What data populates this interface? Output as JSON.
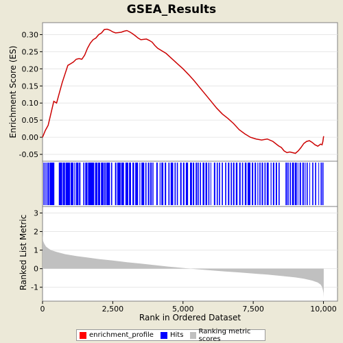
{
  "chart_data": {
    "title": "GSEA_Results",
    "legend": [
      {
        "name": "enrichment_profile",
        "color": "#ff0000"
      },
      {
        "name": "Hits",
        "color": "#0000ff"
      },
      {
        "name": "Ranking metric scores",
        "color": "#c0c0c0"
      }
    ],
    "es_panel": {
      "type": "line",
      "ylabel": "Enrichment Score (ES)",
      "ylim": [
        -0.07,
        0.335
      ],
      "yticks": [
        0.3,
        0.25,
        0.2,
        0.15,
        0.1,
        0.05,
        0.0,
        -0.05
      ],
      "ytick_labels": [
        "0.30",
        "0.25",
        "0.20",
        "0.15",
        "0.10",
        "0.05",
        "0.00",
        "-0.05"
      ],
      "xlim": [
        0,
        10500
      ],
      "color": "#cc0000",
      "points": [
        [
          0,
          0.0
        ],
        [
          100,
          0.02
        ],
        [
          200,
          0.035
        ],
        [
          300,
          0.07
        ],
        [
          400,
          0.105
        ],
        [
          500,
          0.1
        ],
        [
          600,
          0.13
        ],
        [
          700,
          0.16
        ],
        [
          800,
          0.185
        ],
        [
          900,
          0.21
        ],
        [
          1000,
          0.215
        ],
        [
          1100,
          0.22
        ],
        [
          1200,
          0.228
        ],
        [
          1300,
          0.23
        ],
        [
          1400,
          0.228
        ],
        [
          1500,
          0.24
        ],
        [
          1600,
          0.26
        ],
        [
          1700,
          0.275
        ],
        [
          1800,
          0.285
        ],
        [
          1900,
          0.29
        ],
        [
          2000,
          0.3
        ],
        [
          2100,
          0.305
        ],
        [
          2200,
          0.315
        ],
        [
          2300,
          0.316
        ],
        [
          2400,
          0.313
        ],
        [
          2500,
          0.308
        ],
        [
          2600,
          0.305
        ],
        [
          2700,
          0.306
        ],
        [
          2800,
          0.307
        ],
        [
          2900,
          0.31
        ],
        [
          3000,
          0.312
        ],
        [
          3100,
          0.308
        ],
        [
          3200,
          0.303
        ],
        [
          3300,
          0.297
        ],
        [
          3400,
          0.29
        ],
        [
          3500,
          0.285
        ],
        [
          3600,
          0.286
        ],
        [
          3700,
          0.287
        ],
        [
          3800,
          0.283
        ],
        [
          3900,
          0.278
        ],
        [
          4000,
          0.268
        ],
        [
          4100,
          0.26
        ],
        [
          4200,
          0.255
        ],
        [
          4400,
          0.245
        ],
        [
          4600,
          0.23
        ],
        [
          4800,
          0.215
        ],
        [
          5000,
          0.2
        ],
        [
          5200,
          0.183
        ],
        [
          5400,
          0.165
        ],
        [
          5600,
          0.145
        ],
        [
          5800,
          0.125
        ],
        [
          6000,
          0.105
        ],
        [
          6200,
          0.085
        ],
        [
          6400,
          0.068
        ],
        [
          6600,
          0.055
        ],
        [
          6800,
          0.04
        ],
        [
          7000,
          0.022
        ],
        [
          7200,
          0.01
        ],
        [
          7400,
          0.0
        ],
        [
          7600,
          -0.005
        ],
        [
          7800,
          -0.008
        ],
        [
          8000,
          -0.005
        ],
        [
          8200,
          -0.012
        ],
        [
          8400,
          -0.025
        ],
        [
          8500,
          -0.03
        ],
        [
          8600,
          -0.04
        ],
        [
          8700,
          -0.045
        ],
        [
          8800,
          -0.043
        ],
        [
          8900,
          -0.045
        ],
        [
          9000,
          -0.047
        ],
        [
          9100,
          -0.04
        ],
        [
          9200,
          -0.03
        ],
        [
          9300,
          -0.018
        ],
        [
          9400,
          -0.012
        ],
        [
          9500,
          -0.01
        ],
        [
          9600,
          -0.015
        ],
        [
          9700,
          -0.022
        ],
        [
          9800,
          -0.026
        ],
        [
          9900,
          -0.02
        ],
        [
          9950,
          -0.022
        ],
        [
          9980,
          -0.012
        ],
        [
          10000,
          0.0
        ],
        [
          10010,
          0.003
        ]
      ]
    },
    "hits_panel": {
      "type": "scatter",
      "color": "#0000ff",
      "hit_blocks": [
        [
          30,
          60
        ],
        [
          80,
          100
        ],
        [
          120,
          140
        ],
        [
          170,
          230
        ],
        [
          250,
          420
        ],
        [
          580,
          700
        ],
        [
          720,
          800
        ],
        [
          820,
          980
        ],
        [
          1000,
          1100
        ],
        [
          1130,
          1160
        ],
        [
          1190,
          1280
        ],
        [
          1300,
          1350
        ],
        [
          1450,
          1490
        ],
        [
          1520,
          1600
        ],
        [
          1620,
          1840
        ],
        [
          1870,
          1950
        ],
        [
          1970,
          2050
        ],
        [
          2080,
          2180
        ],
        [
          2200,
          2250
        ],
        [
          2270,
          2400
        ],
        [
          2440,
          2480
        ],
        [
          2580,
          2630
        ],
        [
          2660,
          2780
        ],
        [
          2800,
          2900
        ],
        [
          2950,
          3050
        ],
        [
          3080,
          3150
        ],
        [
          3200,
          3260
        ],
        [
          3300,
          3400
        ],
        [
          3450,
          3480
        ],
        [
          3520,
          3620
        ],
        [
          3660,
          3700
        ],
        [
          3750,
          3800
        ],
        [
          3830,
          3860
        ],
        [
          3870,
          3900
        ],
        [
          3920,
          3950
        ],
        [
          4050,
          4100
        ],
        [
          4170,
          4200
        ],
        [
          4230,
          4300
        ],
        [
          4350,
          4400
        ],
        [
          4480,
          4520
        ],
        [
          4560,
          4650
        ],
        [
          4700,
          4740
        ],
        [
          4780,
          4820
        ],
        [
          4900,
          4950
        ],
        [
          5000,
          5050
        ],
        [
          5100,
          5180
        ],
        [
          5250,
          5320
        ],
        [
          5350,
          5400
        ],
        [
          5450,
          5500
        ],
        [
          5520,
          5560
        ],
        [
          5600,
          5640
        ],
        [
          5700,
          5760
        ],
        [
          5800,
          5860
        ],
        [
          5900,
          5940
        ],
        [
          5980,
          6000
        ],
        [
          6100,
          6150
        ],
        [
          6200,
          6240
        ],
        [
          6280,
          6320
        ],
        [
          6380,
          6420
        ],
        [
          6500,
          6540
        ],
        [
          6600,
          6650
        ],
        [
          6700,
          6740
        ],
        [
          6780,
          6830
        ],
        [
          6880,
          6940
        ],
        [
          7000,
          7050
        ],
        [
          7100,
          7140
        ],
        [
          7200,
          7260
        ],
        [
          7300,
          7400
        ],
        [
          7450,
          7500
        ],
        [
          7550,
          7600
        ],
        [
          7650,
          7680
        ],
        [
          7720,
          7760
        ],
        [
          7800,
          7850
        ],
        [
          7900,
          7940
        ],
        [
          7980,
          8050
        ],
        [
          8120,
          8150
        ],
        [
          8200,
          8250
        ],
        [
          8300,
          8350
        ],
        [
          8400,
          8440
        ],
        [
          8650,
          8700
        ],
        [
          8720,
          8760
        ],
        [
          8800,
          8840
        ],
        [
          8880,
          8950
        ],
        [
          8980,
          9050
        ],
        [
          9080,
          9100
        ],
        [
          9150,
          9200
        ],
        [
          9250,
          9300
        ],
        [
          9330,
          9360
        ],
        [
          9400,
          9440
        ],
        [
          9500,
          9520
        ],
        [
          9600,
          9640
        ],
        [
          9700,
          9740
        ],
        [
          9820,
          9840
        ],
        [
          9900,
          9940
        ],
        [
          9960,
          10000
        ]
      ]
    },
    "rank_panel": {
      "type": "area",
      "xlabel": "Rank in Ordered Dataset",
      "ylabel": "Ranked List Metric",
      "ylim": [
        -1.75,
        3.35
      ],
      "yticks": [
        3,
        2,
        1,
        0,
        -1
      ],
      "ytick_labels": [
        "3",
        "2",
        "1",
        "0",
        "-1"
      ],
      "xticks": [
        0,
        2500,
        5000,
        7500,
        10000
      ],
      "xtick_labels": [
        "0",
        "2,500",
        "5,000",
        "7,500",
        "10,000"
      ],
      "xlim": [
        0,
        10500
      ],
      "color": "#c0c0c0",
      "points": [
        [
          0,
          1.9
        ],
        [
          20,
          1.5
        ],
        [
          60,
          1.35
        ],
        [
          120,
          1.2
        ],
        [
          200,
          1.1
        ],
        [
          300,
          1.0
        ],
        [
          500,
          0.9
        ],
        [
          800,
          0.78
        ],
        [
          1200,
          0.68
        ],
        [
          1600,
          0.6
        ],
        [
          2000,
          0.52
        ],
        [
          2500,
          0.44
        ],
        [
          3000,
          0.35
        ],
        [
          3500,
          0.27
        ],
        [
          4000,
          0.19
        ],
        [
          4500,
          0.11
        ],
        [
          5000,
          0.04
        ],
        [
          5500,
          -0.03
        ],
        [
          6000,
          -0.09
        ],
        [
          6500,
          -0.15
        ],
        [
          7000,
          -0.2
        ],
        [
          7500,
          -0.26
        ],
        [
          8000,
          -0.32
        ],
        [
          8500,
          -0.39
        ],
        [
          9000,
          -0.47
        ],
        [
          9300,
          -0.54
        ],
        [
          9600,
          -0.64
        ],
        [
          9800,
          -0.75
        ],
        [
          9900,
          -0.86
        ],
        [
          9950,
          -0.98
        ],
        [
          9980,
          -1.15
        ],
        [
          10000,
          -1.3
        ],
        [
          10010,
          -1.55
        ]
      ]
    }
  }
}
